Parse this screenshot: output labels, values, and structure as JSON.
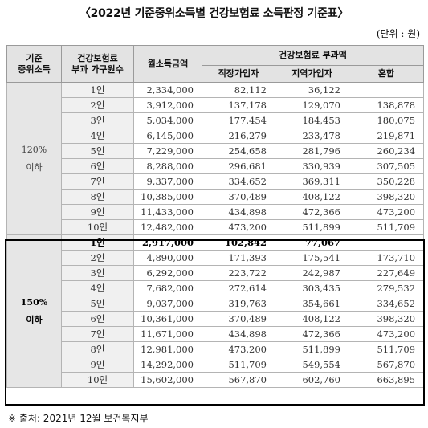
{
  "title": "〈2022년 기준중위소득별 건강보험료 소득판정 기준표〉",
  "unit": "(단위 : 원)",
  "headers": {
    "median_income": "기준\n중위소득",
    "household": "건강보험료\n부과 가구원수",
    "monthly_income": "월소득금액",
    "premium": "건강보험료 부과액",
    "workplace": "직장가입자",
    "regional": "지역가입자",
    "mixed": "혼합"
  },
  "groups": [
    {
      "label": "120%\n이하",
      "rows": [
        {
          "members": "1인",
          "income": "2,334,000",
          "workplace": "82,112",
          "regional": "36,122",
          "mixed": ""
        },
        {
          "members": "2인",
          "income": "3,912,000",
          "workplace": "137,178",
          "regional": "129,070",
          "mixed": "138,878"
        },
        {
          "members": "3인",
          "income": "5,034,000",
          "workplace": "177,454",
          "regional": "184,453",
          "mixed": "180,075"
        },
        {
          "members": "4인",
          "income": "6,145,000",
          "workplace": "216,279",
          "regional": "233,478",
          "mixed": "219,871"
        },
        {
          "members": "5인",
          "income": "7,229,000",
          "workplace": "254,658",
          "regional": "281,796",
          "mixed": "260,234"
        },
        {
          "members": "6인",
          "income": "8,288,000",
          "workplace": "296,681",
          "regional": "330,939",
          "mixed": "307,505"
        },
        {
          "members": "7인",
          "income": "9,337,000",
          "workplace": "334,652",
          "regional": "369,311",
          "mixed": "350,228"
        },
        {
          "members": "8인",
          "income": "10,385,000",
          "workplace": "370,489",
          "regional": "408,122",
          "mixed": "398,320"
        },
        {
          "members": "9인",
          "income": "11,433,000",
          "workplace": "434,898",
          "regional": "472,366",
          "mixed": "473,200"
        },
        {
          "members": "10인",
          "income": "12,482,000",
          "workplace": "473,200",
          "regional": "511,899",
          "mixed": "511,709"
        }
      ]
    },
    {
      "label": "150%\n이하",
      "rows": [
        {
          "members": "1인",
          "income": "2,917,000",
          "workplace": "102,842",
          "regional": "77,067",
          "mixed": "",
          "bold": true
        },
        {
          "members": "2인",
          "income": "4,890,000",
          "workplace": "171,393",
          "regional": "175,541",
          "mixed": "173,710"
        },
        {
          "members": "3인",
          "income": "6,292,000",
          "workplace": "223,722",
          "regional": "242,987",
          "mixed": "227,649"
        },
        {
          "members": "4인",
          "income": "7,682,000",
          "workplace": "272,614",
          "regional": "303,435",
          "mixed": "279,532"
        },
        {
          "members": "5인",
          "income": "9,037,000",
          "workplace": "319,763",
          "regional": "354,661",
          "mixed": "334,652"
        },
        {
          "members": "6인",
          "income": "10,361,000",
          "workplace": "370,489",
          "regional": "408,122",
          "mixed": "398,320"
        },
        {
          "members": "7인",
          "income": "11,671,000",
          "workplace": "434,898",
          "regional": "472,366",
          "mixed": "473,200"
        },
        {
          "members": "8인",
          "income": "12,981,000",
          "workplace": "473,200",
          "regional": "511,899",
          "mixed": "511,709"
        },
        {
          "members": "9인",
          "income": "14,292,000",
          "workplace": "511,709",
          "regional": "549,554",
          "mixed": "567,870"
        },
        {
          "members": "10인",
          "income": "15,602,000",
          "workplace": "567,870",
          "regional": "602,760",
          "mixed": "663,895"
        }
      ]
    }
  ],
  "source": "※ 출처: 2021년 12월 보건복지부"
}
